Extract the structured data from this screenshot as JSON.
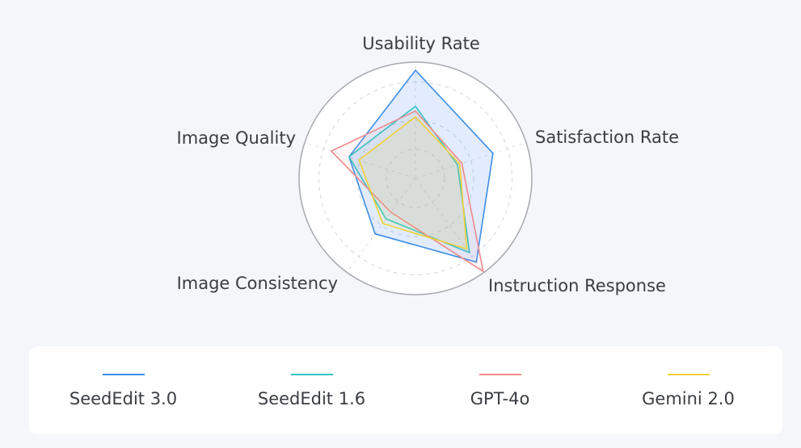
{
  "chart_data": {
    "type": "radar",
    "axes": [
      "Usability Rate",
      "Satisfaction Rate",
      "Instruction Response",
      "Image Consistency",
      "Image Quality"
    ],
    "range": [
      0,
      1
    ],
    "grid": "dashed concentric rings",
    "legend_position": "bottom",
    "series": [
      {
        "name": "SeedEdit 3.0",
        "color": "#3b8fe6",
        "fill": "rgba(59,130,246,0.15)",
        "values": [
          0.93,
          0.7,
          0.89,
          0.59,
          0.6
        ]
      },
      {
        "name": "SeedEdit 1.6",
        "color": "#2ec4c4",
        "fill": "rgba(46,196,196,0.08)",
        "values": [
          0.62,
          0.38,
          0.79,
          0.43,
          0.6
        ]
      },
      {
        "name": "GPT-4o",
        "color": "#f08a8a",
        "fill": "rgba(240,138,138,0.08)",
        "values": [
          0.58,
          0.42,
          0.99,
          0.36,
          0.76
        ]
      },
      {
        "name": "Gemini 2.0",
        "color": "#f2cf37",
        "fill": "rgba(242,207,55,0.12)",
        "values": [
          0.53,
          0.4,
          0.75,
          0.48,
          0.51
        ]
      }
    ]
  }
}
